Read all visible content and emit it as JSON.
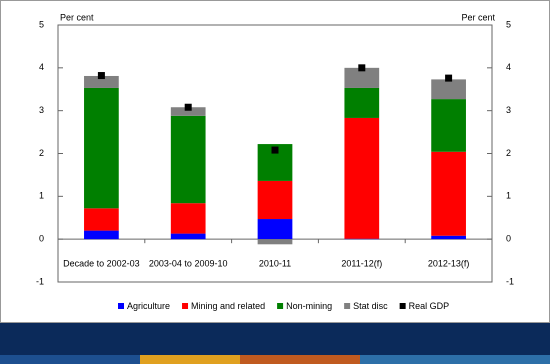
{
  "chart_data": {
    "type": "bar",
    "stacked": true,
    "y_label": "Per cent",
    "categories": [
      "Decade to 2002-03",
      "2003-04 to 2009-10",
      "2010-11",
      "2011-12(f)",
      "2012-13(f)"
    ],
    "series": [
      {
        "name": "Agriculture",
        "color": "#0000ff",
        "values": [
          0.2,
          0.13,
          0.47,
          0.01,
          0.08
        ]
      },
      {
        "name": "Mining and related",
        "color": "#ff0000",
        "values": [
          0.52,
          0.71,
          0.89,
          2.82,
          1.96
        ]
      },
      {
        "name": "Non-mining",
        "color": "#007f00",
        "values": [
          2.81,
          2.04,
          0.86,
          0.7,
          1.23
        ]
      },
      {
        "name": "Stat disc",
        "color": "#808080",
        "values": [
          0.28,
          0.2,
          -0.12,
          0.47,
          0.46
        ]
      },
      {
        "name": "Real GDP",
        "color": "#000000",
        "marker": "square",
        "values": [
          3.82,
          3.08,
          2.08,
          4.0,
          3.76
        ]
      }
    ],
    "ylim": [
      -1,
      5
    ],
    "yticks": [
      -1,
      0,
      1,
      2,
      3,
      4,
      5
    ]
  }
}
